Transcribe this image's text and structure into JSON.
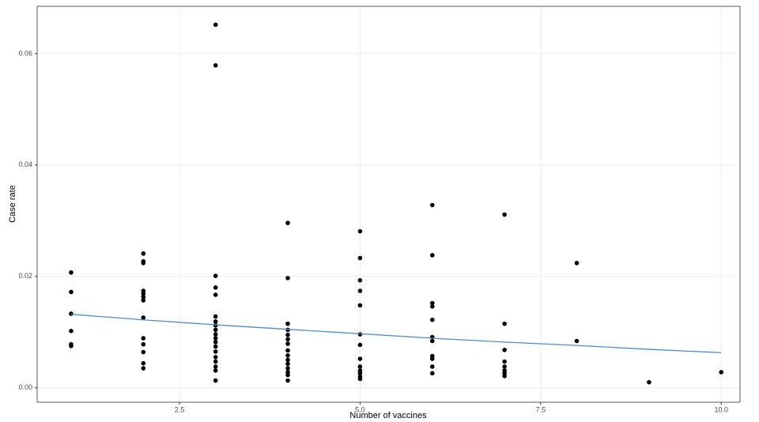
{
  "chart_data": {
    "type": "scatter",
    "x_label": "Number of vaccines",
    "y_label": "Case rate",
    "xlim": [
      0.53,
      10.26
    ],
    "ylim": [
      -0.0026,
      0.0685
    ],
    "xticks": [
      2.5,
      {
        "value": 5,
        "label": "5.0"
      },
      7.5,
      {
        "value": 10,
        "label": "10.0"
      }
    ],
    "yticks": [
      {
        "value": 0,
        "label": "0.00"
      },
      {
        "value": 0.02,
        "label": "0.02"
      },
      {
        "value": 0.04,
        "label": "0.04"
      },
      {
        "value": 0.06,
        "label": "0.06"
      }
    ],
    "grid": true,
    "series": [
      {
        "type": "scatter",
        "color": "#000000",
        "x": [
          1,
          1,
          1,
          1,
          1,
          1,
          2,
          2,
          2,
          2,
          2,
          2,
          2,
          2,
          2,
          2,
          2,
          2,
          2,
          3,
          3,
          3,
          3,
          3,
          3,
          3,
          3,
          3,
          3,
          3,
          3,
          3,
          3,
          3,
          3,
          3,
          3,
          3,
          4,
          4,
          4,
          4,
          4,
          4,
          4,
          4,
          4,
          4,
          4,
          4,
          4,
          4,
          4,
          5,
          5,
          5,
          5,
          5,
          5,
          5,
          5,
          5,
          5,
          5,
          5,
          5,
          6,
          6,
          6,
          6,
          6,
          6,
          6,
          6,
          6,
          6,
          6,
          7,
          7,
          7,
          7,
          7,
          7,
          7,
          7,
          8,
          8,
          9,
          10
        ],
        "values": [
          0.0207,
          0.0172,
          0.0133,
          0.0102,
          0.0078,
          0.0075,
          0.0241,
          0.0227,
          0.0224,
          0.0174,
          0.0169,
          0.0163,
          0.0157,
          0.0126,
          0.0089,
          0.0078,
          0.0064,
          0.0044,
          0.0035,
          0.0652,
          0.0579,
          0.0201,
          0.018,
          0.0167,
          0.0128,
          0.0119,
          0.0112,
          0.0104,
          0.0096,
          0.0089,
          0.0082,
          0.0074,
          0.0065,
          0.0055,
          0.0047,
          0.0038,
          0.0031,
          0.0013,
          0.0296,
          0.0197,
          0.0115,
          0.0104,
          0.0095,
          0.0087,
          0.0079,
          0.0067,
          0.0058,
          0.005,
          0.0043,
          0.0035,
          0.0028,
          0.0023,
          0.0013,
          0.0281,
          0.0233,
          0.0193,
          0.0174,
          0.0148,
          0.0096,
          0.0077,
          0.0052,
          0.0038,
          0.0031,
          0.0026,
          0.002,
          0.0016,
          0.0328,
          0.0238,
          0.0152,
          0.0146,
          0.0122,
          0.0091,
          0.0084,
          0.0057,
          0.0052,
          0.0038,
          0.0026,
          0.0311,
          0.0115,
          0.0068,
          0.0047,
          0.0038,
          0.0031,
          0.0026,
          0.0021,
          0.0224,
          0.0084,
          0.001,
          0.0028
        ]
      },
      {
        "type": "line",
        "color": "#4f8dc4",
        "x": [
          1,
          2,
          3,
          4,
          5,
          6,
          7,
          8,
          9,
          10
        ],
        "values": [
          0.0132,
          0.0122,
          0.0113,
          0.0105,
          0.0097,
          0.0089,
          0.0082,
          0.0076,
          0.0069,
          0.0063
        ]
      }
    ]
  }
}
